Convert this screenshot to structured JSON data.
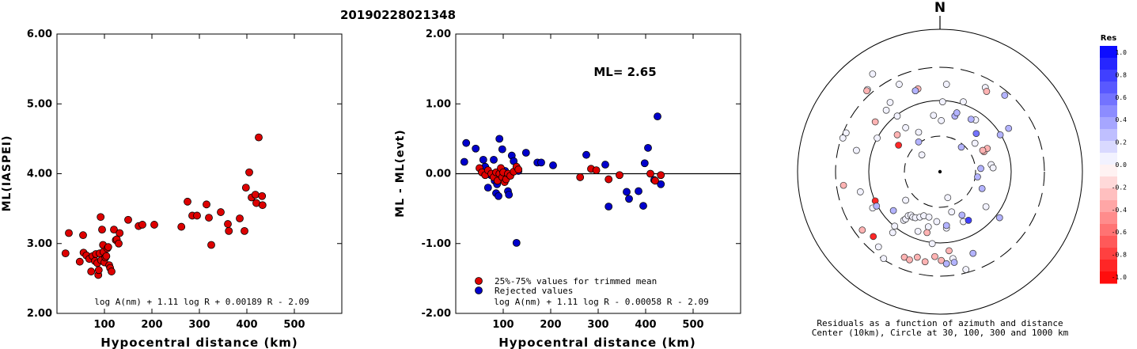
{
  "title": "20190228021348",
  "chart_data": [
    {
      "type": "scatter",
      "panel": "ml",
      "xlabel": "Hypocentral distance (km)",
      "ylabel": "ML(IASPEI)",
      "xlim": [
        0,
        600
      ],
      "ylim": [
        2.0,
        6.0
      ],
      "x_ticks": [
        100,
        200,
        300,
        400,
        500
      ],
      "x_tick_labels": [
        "100",
        "200",
        "300",
        "400",
        "500"
      ],
      "y_ticks": [
        2.0,
        3.0,
        4.0,
        5.0,
        6.0
      ],
      "y_tick_labels": [
        "2.00",
        "3.00",
        "4.00",
        "5.00",
        "6.00"
      ],
      "formula": "log A(nm) + 1.11 log R + 0.00189 R - 2.09",
      "points_color": "#dd0000",
      "points": [
        [
          18,
          2.86
        ],
        [
          25,
          3.15
        ],
        [
          48,
          2.74
        ],
        [
          55,
          3.12
        ],
        [
          56,
          2.87
        ],
        [
          62,
          2.83
        ],
        [
          68,
          2.78
        ],
        [
          72,
          2.6
        ],
        [
          75,
          2.82
        ],
        [
          80,
          2.75
        ],
        [
          82,
          2.85
        ],
        [
          85,
          2.72
        ],
        [
          87,
          2.55
        ],
        [
          88,
          2.62
        ],
        [
          90,
          2.86
        ],
        [
          92,
          3.38
        ],
        [
          93,
          2.76
        ],
        [
          95,
          3.2
        ],
        [
          97,
          2.98
        ],
        [
          98,
          2.88
        ],
        [
          100,
          2.73
        ],
        [
          102,
          2.8
        ],
        [
          104,
          2.82
        ],
        [
          106,
          2.93
        ],
        [
          108,
          2.95
        ],
        [
          110,
          2.69
        ],
        [
          112,
          2.65
        ],
        [
          115,
          2.6
        ],
        [
          120,
          3.2
        ],
        [
          124,
          3.05
        ],
        [
          126,
          3.06
        ],
        [
          128,
          1.96
        ],
        [
          130,
          3.0
        ],
        [
          132,
          3.15
        ],
        [
          150,
          3.34
        ],
        [
          172,
          3.25
        ],
        [
          180,
          3.27
        ],
        [
          205,
          3.27
        ],
        [
          262,
          3.24
        ],
        [
          275,
          3.6
        ],
        [
          285,
          3.4
        ],
        [
          295,
          3.4
        ],
        [
          315,
          3.56
        ],
        [
          320,
          3.37
        ],
        [
          325,
          2.98
        ],
        [
          345,
          3.45
        ],
        [
          360,
          3.28
        ],
        [
          362,
          3.18
        ],
        [
          385,
          3.36
        ],
        [
          395,
          3.18
        ],
        [
          398,
          3.8
        ],
        [
          405,
          4.02
        ],
        [
          410,
          3.66
        ],
        [
          418,
          3.7
        ],
        [
          420,
          3.58
        ],
        [
          425,
          4.52
        ],
        [
          432,
          3.68
        ],
        [
          433,
          3.55
        ]
      ]
    },
    {
      "type": "scatter",
      "panel": "residual",
      "xlabel": "Hypocentral distance (km)",
      "ylabel": "ML - ML(evt)",
      "xlim": [
        0,
        600
      ],
      "ylim": [
        -2.0,
        2.0
      ],
      "x_ticks": [
        100,
        200,
        300,
        400,
        500
      ],
      "x_tick_labels": [
        "100",
        "200",
        "300",
        "400",
        "500"
      ],
      "y_ticks": [
        -2.0,
        -1.0,
        0.0,
        1.0,
        2.0
      ],
      "y_tick_labels": [
        "-2.00",
        "-1.00",
        "0.00",
        "1.00",
        "2.00"
      ],
      "ml_label": "ML= 2.65",
      "formula": "log A(nm) + 1.11 log R - 0.00058 R - 2.09",
      "legend": [
        {
          "label": "25%-75% values for trimmed mean",
          "color": "#dd0000"
        },
        {
          "label": "Rejected values",
          "color": "#0000cc"
        }
      ],
      "series": [
        {
          "name": "25%-75% values for trimmed mean",
          "color": "#dd0000",
          "points": [
            [
              50,
              0.08
            ],
            [
              55,
              0.02
            ],
            [
              62,
              -0.02
            ],
            [
              68,
              0.05
            ],
            [
              75,
              0.0
            ],
            [
              80,
              -0.05
            ],
            [
              85,
              0.02
            ],
            [
              88,
              -0.1
            ],
            [
              92,
              0.0
            ],
            [
              95,
              0.08
            ],
            [
              98,
              -0.05
            ],
            [
              100,
              0.02
            ],
            [
              103,
              -0.12
            ],
            [
              106,
              -0.08
            ],
            [
              110,
              0.0
            ],
            [
              115,
              -0.03
            ],
            [
              122,
              0.03
            ],
            [
              128,
              0.1
            ],
            [
              132,
              0.06
            ],
            [
              262,
              -0.05
            ],
            [
              285,
              0.07
            ],
            [
              296,
              0.05
            ],
            [
              322,
              -0.08
            ],
            [
              345,
              -0.02
            ],
            [
              410,
              0.0
            ],
            [
              420,
              -0.1
            ],
            [
              432,
              -0.02
            ]
          ]
        },
        {
          "name": "Rejected values",
          "color": "#0000cc",
          "points": [
            [
              18,
              0.17
            ],
            [
              22,
              0.44
            ],
            [
              42,
              0.36
            ],
            [
              58,
              0.2
            ],
            [
              62,
              0.1
            ],
            [
              68,
              -0.2
            ],
            [
              74,
              -0.02
            ],
            [
              80,
              0.2
            ],
            [
              82,
              -0.1
            ],
            [
              85,
              -0.28
            ],
            [
              87,
              -0.15
            ],
            [
              90,
              -0.32
            ],
            [
              92,
              0.5
            ],
            [
              95,
              0.0
            ],
            [
              98,
              0.35
            ],
            [
              100,
              -0.08
            ],
            [
              104,
              0.04
            ],
            [
              110,
              -0.25
            ],
            [
              112,
              -0.3
            ],
            [
              118,
              0.26
            ],
            [
              122,
              0.18
            ],
            [
              128,
              -0.99
            ],
            [
              132,
              0.04
            ],
            [
              148,
              0.3
            ],
            [
              172,
              0.16
            ],
            [
              180,
              0.16
            ],
            [
              205,
              0.12
            ],
            [
              275,
              0.27
            ],
            [
              315,
              0.13
            ],
            [
              322,
              -0.47
            ],
            [
              360,
              -0.26
            ],
            [
              365,
              -0.36
            ],
            [
              385,
              -0.25
            ],
            [
              395,
              -0.46
            ],
            [
              398,
              0.15
            ],
            [
              405,
              0.37
            ],
            [
              418,
              -0.09
            ],
            [
              425,
              0.82
            ],
            [
              432,
              -0.15
            ]
          ]
        }
      ]
    },
    {
      "type": "scatter",
      "panel": "polar",
      "north_label": "N",
      "caption_line1": "Residuals as a function of azimuth and distance",
      "caption_line2": "Center (10km), Circle at 30, 100, 300 and 1000 km",
      "note": "points are [x,y] in map units where the 300 km circle has radius 1; third value is residual",
      "points": [
        [
          0.4,
          -1.51,
          0.05
        ],
        [
          -0.87,
          -1.34,
          0.05
        ],
        [
          -0.95,
          -1.16,
          0.05
        ],
        [
          -0.73,
          -0.94,
          0.05
        ],
        [
          -0.7,
          -0.84,
          0.05
        ],
        [
          -0.56,
          -0.75,
          0.05
        ],
        [
          -0.53,
          -0.73,
          0.05
        ],
        [
          -0.49,
          -0.68,
          0.05
        ],
        [
          -0.45,
          -0.67,
          0.05
        ],
        [
          -0.42,
          -0.7,
          0.05
        ],
        [
          -0.38,
          -0.71,
          0.05
        ],
        [
          -0.31,
          -0.7,
          0.05
        ],
        [
          -0.25,
          -0.68,
          0.05
        ],
        [
          -0.17,
          -0.7,
          0.05
        ],
        [
          -0.05,
          -0.77,
          0.05
        ],
        [
          0.1,
          -0.87,
          0.05
        ],
        [
          0.36,
          -0.77,
          0.05
        ],
        [
          0.71,
          -0.54,
          0.05
        ],
        [
          0.79,
          0.11,
          0.05
        ],
        [
          0.82,
          0.06,
          0.05
        ],
        [
          -0.28,
          0.26,
          0.05
        ],
        [
          -0.53,
          -0.44,
          0.05
        ],
        [
          -1.04,
          -0.56,
          0.05
        ],
        [
          -1.23,
          -0.31,
          0.05
        ],
        [
          -1.29,
          0.33,
          0.05
        ],
        [
          -1.45,
          0.6,
          0.05
        ],
        [
          -1.5,
          0.52,
          0.05
        ],
        [
          -0.97,
          0.52,
          0.05
        ],
        [
          -0.83,
          0.95,
          0.05
        ],
        [
          -0.77,
          1.07,
          0.05
        ],
        [
          -0.66,
          0.86,
          0.05
        ],
        [
          -0.53,
          0.68,
          0.05
        ],
        [
          -0.33,
          0.61,
          0.05
        ],
        [
          -0.1,
          0.87,
          0.05
        ],
        [
          0.04,
          1.08,
          0.05
        ],
        [
          0.02,
          0.79,
          0.05
        ],
        [
          0.36,
          1.08,
          0.05
        ],
        [
          0.55,
          0.8,
          0.05
        ],
        [
          0.54,
          0.44,
          0.05
        ],
        [
          0.7,
          1.3,
          0.05
        ],
        [
          -1.12,
          1.27,
          0.05
        ],
        [
          -1.04,
          1.51,
          0.05
        ],
        [
          -0.63,
          1.35,
          0.05
        ],
        [
          0.1,
          1.35,
          0.05
        ],
        [
          0.12,
          -0.4,
          0.05
        ],
        [
          0.18,
          -0.62,
          0.05
        ],
        [
          -0.18,
          -0.85,
          0.05
        ],
        [
          -0.34,
          -0.92,
          0.05
        ],
        [
          -0.12,
          -1.11,
          0.05
        ],
        [
          0.2,
          -1.34,
          0.05
        ],
        [
          -1.13,
          1.25,
          -0.3
        ],
        [
          -1.0,
          0.77,
          -0.3
        ],
        [
          0.68,
          0.31,
          -0.3
        ],
        [
          0.73,
          0.36,
          -0.3
        ],
        [
          0.66,
          0.33,
          -0.3
        ],
        [
          -0.34,
          1.28,
          -0.3
        ],
        [
          -0.38,
          1.25,
          -0.3
        ],
        [
          0.72,
          1.24,
          -0.3
        ],
        [
          -0.66,
          0.57,
          -0.3
        ],
        [
          -1.49,
          -0.21,
          -0.3
        ],
        [
          -1.2,
          -0.9,
          -0.3
        ],
        [
          -0.55,
          -1.32,
          -0.3
        ],
        [
          -0.47,
          -1.36,
          -0.3
        ],
        [
          -0.35,
          -1.32,
          -0.3
        ],
        [
          -0.23,
          -1.39,
          -0.3
        ],
        [
          -0.08,
          -1.31,
          -0.3
        ],
        [
          0.02,
          -1.37,
          -0.3
        ],
        [
          0.14,
          -1.22,
          -0.3
        ],
        [
          -0.64,
          0.41,
          -0.85
        ],
        [
          -1.0,
          -0.45,
          -0.85
        ],
        [
          -1.03,
          -1.0,
          -0.85
        ],
        [
          -0.2,
          -0.94,
          -0.3
        ],
        [
          -0.33,
          0.46,
          0.3
        ],
        [
          -0.38,
          1.25,
          0.3
        ],
        [
          0.23,
          0.86,
          0.3
        ],
        [
          0.26,
          0.91,
          0.3
        ],
        [
          0.1,
          -0.83,
          0.3
        ],
        [
          0.93,
          0.57,
          0.3
        ],
        [
          0.33,
          0.38,
          0.3
        ],
        [
          -0.98,
          -0.53,
          0.3
        ],
        [
          0.48,
          0.81,
          0.3
        ],
        [
          0.58,
          -0.08,
          0.3
        ],
        [
          0.34,
          -0.67,
          0.3
        ],
        [
          0.63,
          0.05,
          0.3
        ],
        [
          1.06,
          0.67,
          0.3
        ],
        [
          0.65,
          -0.26,
          0.3
        ],
        [
          0.92,
          -0.71,
          0.3
        ],
        [
          0.22,
          -1.4,
          0.3
        ],
        [
          0.51,
          -1.26,
          0.3
        ],
        [
          0.44,
          -0.75,
          0.75
        ],
        [
          -0.72,
          -0.6,
          0.3
        ],
        [
          0.56,
          0.59,
          0.55
        ],
        [
          0.1,
          -1.42,
          0.85
        ],
        [
          1.0,
          1.18,
          0.3
        ],
        [
          0.1,
          -1.42,
          0.3
        ]
      ],
      "colorbar": {
        "title": "Res",
        "tick_labels": [
          "1.0",
          "0.8",
          "0.6",
          "0.4",
          "0.2",
          "0.0",
          "-0.2",
          "-0.4",
          "-0.6",
          "-0.8",
          "-1.0"
        ],
        "top_color": "#0000ff",
        "bottom_color": "#ff0000"
      }
    }
  ]
}
